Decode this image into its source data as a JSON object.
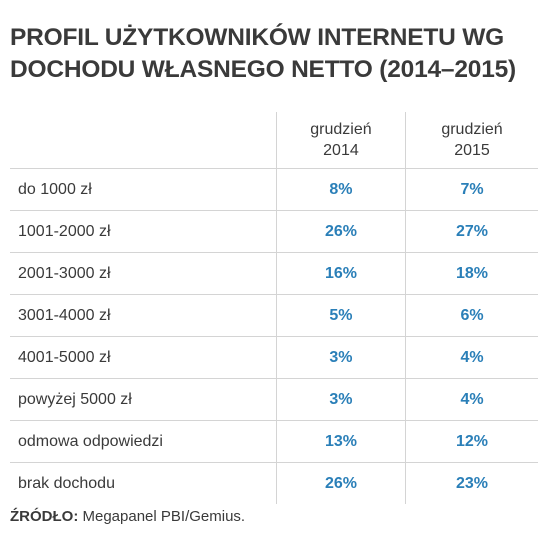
{
  "title": {
    "line1": "PROFIL UŻYTKOWNIKÓW INTERNETU WG",
    "line2": "DOCHODU WŁASNEGO NETTO (2014–2015)"
  },
  "table": {
    "headers": [
      {
        "line1": "grudzień",
        "line2": "2014"
      },
      {
        "line1": "grudzień",
        "line2": "2015"
      }
    ],
    "rows": [
      {
        "label": "do 1000 zł",
        "v2014": "8%",
        "v2015": "7%"
      },
      {
        "label": "1001-2000 zł",
        "v2014": "26%",
        "v2015": "27%"
      },
      {
        "label": "2001-3000 zł",
        "v2014": "16%",
        "v2015": "18%"
      },
      {
        "label": "3001-4000 zł",
        "v2014": "5%",
        "v2015": "6%"
      },
      {
        "label": "4001-5000 zł",
        "v2014": "3%",
        "v2015": "4%"
      },
      {
        "label": "powyżej 5000 zł",
        "v2014": "3%",
        "v2015": "4%"
      },
      {
        "label": "odmowa odpowiedzi",
        "v2014": "13%",
        "v2015": "12%"
      },
      {
        "label": "brak dochodu",
        "v2014": "26%",
        "v2015": "23%"
      }
    ]
  },
  "source": {
    "key": "ŹRÓDŁO:",
    "value": "Megapanel PBI/Gemius."
  },
  "colors": {
    "value_text": "#2a7fb8",
    "text": "#3a3a3a",
    "rule": "#d4d4d4"
  }
}
